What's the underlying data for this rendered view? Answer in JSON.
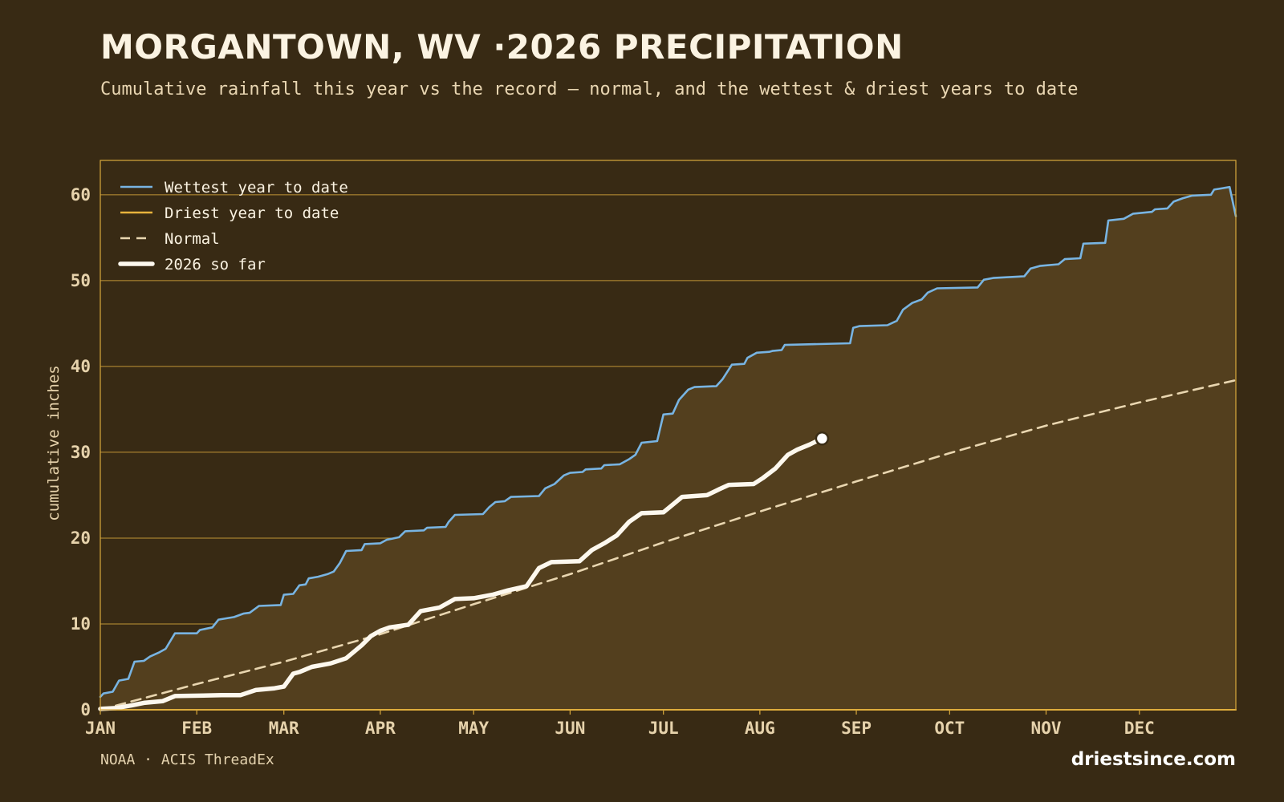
{
  "header": {
    "title": "MORGANTOWN, WV ·2026 PRECIPITATION",
    "subtitle": "Cumulative rainfall this year vs the record — normal, and the wettest & driest years to date"
  },
  "footer": {
    "source": "NOAA · ACIS ThreadEx",
    "site": "driestsince.com"
  },
  "colors": {
    "background": "#382a14",
    "band_fill": "#533f1e",
    "axis": "#d9a93c",
    "wettest": "#78b4e2",
    "driest": "#e8b33c",
    "normal": "#e9d6b0",
    "current": "#fdf8ee"
  },
  "chart_data": {
    "type": "line",
    "ylabel": "cumulative inches",
    "xlabel": "",
    "ylim": [
      0,
      64
    ],
    "xlim": [
      0,
      365
    ],
    "yticks": [
      0,
      10,
      20,
      30,
      40,
      50,
      60
    ],
    "month_ticks": [
      {
        "label": "JAN",
        "day": 0
      },
      {
        "label": "FEB",
        "day": 31
      },
      {
        "label": "MAR",
        "day": 59
      },
      {
        "label": "APR",
        "day": 90
      },
      {
        "label": "MAY",
        "day": 120
      },
      {
        "label": "JUN",
        "day": 151
      },
      {
        "label": "JUL",
        "day": 181
      },
      {
        "label": "AUG",
        "day": 212
      },
      {
        "label": "SEP",
        "day": 243
      },
      {
        "label": "OCT",
        "day": 273
      },
      {
        "label": "NOV",
        "day": 304
      },
      {
        "label": "DEC",
        "day": 334
      }
    ],
    "grid": true,
    "legend_position": "top-left",
    "series": [
      {
        "name": "Wettest year to date",
        "style": "solid",
        "points": [
          [
            0,
            1.5
          ],
          [
            1,
            1.9
          ],
          [
            4,
            2.1
          ],
          [
            6,
            3.4
          ],
          [
            9,
            3.6
          ],
          [
            11,
            5.6
          ],
          [
            14,
            5.7
          ],
          [
            16,
            6.2
          ],
          [
            19,
            6.7
          ],
          [
            21,
            7.1
          ],
          [
            24,
            8.9
          ],
          [
            28,
            8.9
          ],
          [
            31,
            8.9
          ],
          [
            32,
            9.3
          ],
          [
            36,
            9.6
          ],
          [
            38,
            10.5
          ],
          [
            43,
            10.8
          ],
          [
            46,
            11.2
          ],
          [
            48,
            11.3
          ],
          [
            51,
            12.1
          ],
          [
            58,
            12.2
          ],
          [
            59,
            13.4
          ],
          [
            62,
            13.5
          ],
          [
            64,
            14.5
          ],
          [
            66,
            14.6
          ],
          [
            67,
            15.3
          ],
          [
            70,
            15.5
          ],
          [
            73,
            15.8
          ],
          [
            75,
            16.1
          ],
          [
            77,
            17.1
          ],
          [
            79,
            18.5
          ],
          [
            84,
            18.6
          ],
          [
            85,
            19.3
          ],
          [
            90,
            19.4
          ],
          [
            92,
            19.8
          ],
          [
            96,
            20.1
          ],
          [
            98,
            20.8
          ],
          [
            104,
            20.9
          ],
          [
            105,
            21.2
          ],
          [
            111,
            21.3
          ],
          [
            112,
            21.9
          ],
          [
            114,
            22.7
          ],
          [
            123,
            22.8
          ],
          [
            125,
            23.6
          ],
          [
            127,
            24.2
          ],
          [
            130,
            24.3
          ],
          [
            132,
            24.8
          ],
          [
            141,
            24.9
          ],
          [
            143,
            25.8
          ],
          [
            146,
            26.3
          ],
          [
            149,
            27.3
          ],
          [
            151,
            27.6
          ],
          [
            155,
            27.7
          ],
          [
            156,
            28.0
          ],
          [
            161,
            28.1
          ],
          [
            162,
            28.5
          ],
          [
            167,
            28.6
          ],
          [
            170,
            29.2
          ],
          [
            172,
            29.7
          ],
          [
            174,
            31.1
          ],
          [
            179,
            31.3
          ],
          [
            181,
            34.4
          ],
          [
            184,
            34.5
          ],
          [
            186,
            36.1
          ],
          [
            189,
            37.3
          ],
          [
            191,
            37.6
          ],
          [
            198,
            37.7
          ],
          [
            200,
            38.5
          ],
          [
            203,
            40.2
          ],
          [
            207,
            40.3
          ],
          [
            208,
            41.0
          ],
          [
            211,
            41.6
          ],
          [
            215,
            41.7
          ],
          [
            216,
            41.8
          ],
          [
            219,
            41.9
          ],
          [
            220,
            42.5
          ],
          [
            241,
            42.7
          ],
          [
            242,
            44.5
          ],
          [
            244,
            44.7
          ],
          [
            253,
            44.8
          ],
          [
            256,
            45.3
          ],
          [
            258,
            46.6
          ],
          [
            261,
            47.4
          ],
          [
            264,
            47.8
          ],
          [
            266,
            48.6
          ],
          [
            269,
            49.1
          ],
          [
            282,
            49.2
          ],
          [
            284,
            50.1
          ],
          [
            287,
            50.3
          ],
          [
            297,
            50.5
          ],
          [
            299,
            51.4
          ],
          [
            302,
            51.7
          ],
          [
            308,
            51.9
          ],
          [
            310,
            52.5
          ],
          [
            315,
            52.6
          ],
          [
            316,
            54.3
          ],
          [
            323,
            54.4
          ],
          [
            324,
            57.0
          ],
          [
            329,
            57.2
          ],
          [
            332,
            57.8
          ],
          [
            338,
            58.0
          ],
          [
            339,
            58.3
          ],
          [
            343,
            58.4
          ],
          [
            345,
            59.2
          ],
          [
            348,
            59.6
          ],
          [
            351,
            59.9
          ],
          [
            357,
            60.0
          ],
          [
            358,
            60.6
          ],
          [
            363,
            60.9
          ],
          [
            365,
            57.5
          ]
        ]
      },
      {
        "name": "Driest year to date",
        "style": "solid",
        "points": [
          [
            0,
            0.0
          ],
          [
            365,
            0.0
          ]
        ]
      },
      {
        "name": "Normal",
        "style": "dashed",
        "points": [
          [
            0,
            0.0
          ],
          [
            31,
            3.0
          ],
          [
            59,
            5.6
          ],
          [
            90,
            8.8
          ],
          [
            120,
            12.3
          ],
          [
            151,
            15.8
          ],
          [
            181,
            19.5
          ],
          [
            212,
            23.1
          ],
          [
            243,
            26.6
          ],
          [
            273,
            29.9
          ],
          [
            304,
            33.1
          ],
          [
            334,
            35.8
          ],
          [
            365,
            38.4
          ]
        ]
      },
      {
        "name": "2026 so far",
        "style": "solid",
        "points": [
          [
            0,
            0.1
          ],
          [
            5,
            0.2
          ],
          [
            10,
            0.5
          ],
          [
            14,
            0.8
          ],
          [
            20,
            1.0
          ],
          [
            24,
            1.6
          ],
          [
            39,
            1.7
          ],
          [
            45,
            1.7
          ],
          [
            50,
            2.3
          ],
          [
            56,
            2.5
          ],
          [
            59,
            2.7
          ],
          [
            62,
            4.2
          ],
          [
            64,
            4.4
          ],
          [
            68,
            5.0
          ],
          [
            74,
            5.4
          ],
          [
            79,
            6.0
          ],
          [
            84,
            7.5
          ],
          [
            87,
            8.6
          ],
          [
            90,
            9.2
          ],
          [
            93,
            9.6
          ],
          [
            99,
            9.9
          ],
          [
            103,
            11.5
          ],
          [
            109,
            11.9
          ],
          [
            114,
            12.9
          ],
          [
            120,
            13.0
          ],
          [
            126,
            13.4
          ],
          [
            131,
            13.9
          ],
          [
            137,
            14.4
          ],
          [
            141,
            16.5
          ],
          [
            145,
            17.2
          ],
          [
            154,
            17.3
          ],
          [
            158,
            18.6
          ],
          [
            162,
            19.4
          ],
          [
            166,
            20.3
          ],
          [
            170,
            21.9
          ],
          [
            174,
            22.9
          ],
          [
            181,
            23.0
          ],
          [
            187,
            24.8
          ],
          [
            195,
            25.0
          ],
          [
            199,
            25.7
          ],
          [
            202,
            26.2
          ],
          [
            210,
            26.3
          ],
          [
            213,
            27.0
          ],
          [
            217,
            28.1
          ],
          [
            221,
            29.7
          ],
          [
            224,
            30.3
          ],
          [
            228,
            30.9
          ],
          [
            232,
            31.6
          ]
        ],
        "end_marker": true
      }
    ]
  }
}
